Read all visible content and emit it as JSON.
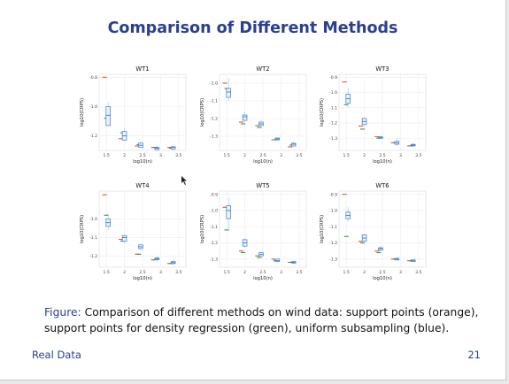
{
  "slide": {
    "title": "Comparison of Different Methods",
    "caption_label": "Figure:",
    "caption_text": "Comparison of different methods on wind data: support points (orange), support points for density regression (green), uniform subsampling (blue).",
    "footer_left": "Real Data",
    "page_number": "21"
  },
  "colors": {
    "orange": "#f0502e",
    "green": "#2e9e3a",
    "blue": "#3a7fd0",
    "title": "#2b3f8f"
  },
  "chart_data": [
    {
      "type": "box",
      "title": "WT1",
      "xlabel": "log10(n)",
      "ylabel": "log10(CRPS)",
      "xlim": [
        1.3,
        3.7
      ],
      "xticks": [
        1.5,
        2,
        2.5,
        3,
        3.5
      ],
      "xtick_labels": [
        "1.5",
        "2",
        "2.5",
        "3",
        "3.5"
      ],
      "ylim": [
        -1.3,
        -0.78
      ],
      "yticks": [
        -0.8,
        -1.0,
        -1.2
      ],
      "ytick_labels": [
        "-0.8",
        "-1.0",
        "-1.2"
      ],
      "series": [
        {
          "values": [
            [
              1.45,
              -0.8
            ],
            [
              1.9,
              -1.22
            ],
            [
              2.35,
              -1.27
            ],
            [
              2.8,
              -1.28
            ],
            [
              3.25,
              -1.28
            ]
          ]
        },
        {
          "values": [
            [
              1.5,
              -1.08
            ],
            [
              1.95,
              -1.18
            ],
            [
              2.4,
              -1.26
            ],
            [
              2.85,
              -1.28
            ],
            [
              3.3,
              -1.285
            ]
          ]
        },
        {
          "boxes": [
            [
              1.55,
              -1.11,
              -0.97,
              -1.0,
              -1.06,
              -1.13
            ],
            [
              2.0,
              -1.22,
              -1.15,
              -1.17,
              -1.2,
              -1.23
            ],
            [
              2.45,
              -1.28,
              -1.24,
              -1.25,
              -1.265,
              -1.28
            ],
            [
              2.9,
              -1.3,
              -1.27,
              -1.28,
              -1.285,
              -1.295
            ],
            [
              3.35,
              -1.3,
              -1.27,
              -1.275,
              -1.28,
              -1.29
            ]
          ]
        }
      ]
    },
    {
      "type": "box",
      "title": "WT2",
      "xlabel": "log10(n)",
      "ylabel": "log10(CRPS)",
      "xlim": [
        1.3,
        3.7
      ],
      "xticks": [
        1.5,
        2,
        2.5,
        3,
        3.5
      ],
      "xtick_labels": [
        "1.5",
        "2",
        "2.5",
        "3",
        "3.5"
      ],
      "ylim": [
        -1.38,
        -0.95
      ],
      "yticks": [
        -1.0,
        -1.1,
        -1.2,
        -1.3
      ],
      "ytick_labels": [
        "-1.0",
        "-1.1",
        "-1.2",
        "-1.3"
      ],
      "series": [
        {
          "values": [
            [
              1.45,
              -1.0
            ],
            [
              1.9,
              -1.22
            ],
            [
              2.35,
              -1.24
            ],
            [
              2.8,
              -1.32
            ],
            [
              3.25,
              -1.36
            ]
          ]
        },
        {
          "values": [
            [
              1.5,
              -1.03
            ],
            [
              1.95,
              -1.23
            ],
            [
              2.4,
              -1.25
            ],
            [
              2.85,
              -1.32
            ],
            [
              3.3,
              -1.35
            ]
          ]
        },
        {
          "boxes": [
            [
              1.55,
              -1.1,
              -0.97,
              -1.03,
              -1.05,
              -1.08
            ],
            [
              2.0,
              -1.22,
              -1.16,
              -1.18,
              -1.19,
              -1.21
            ],
            [
              2.45,
              -1.25,
              -1.21,
              -1.22,
              -1.23,
              -1.24
            ],
            [
              2.9,
              -1.32,
              -1.31,
              -1.31,
              -1.315,
              -1.32
            ],
            [
              3.35,
              -1.36,
              -1.33,
              -1.34,
              -1.345,
              -1.355
            ]
          ]
        }
      ]
    },
    {
      "type": "box",
      "title": "WT3",
      "xlabel": "log10(n)",
      "ylabel": "log10(CRPS)",
      "xlim": [
        1.3,
        3.7
      ],
      "xticks": [
        1.5,
        2,
        2.5,
        3,
        3.5
      ],
      "xtick_labels": [
        "1.5",
        "2",
        "2.5",
        "3",
        "3.5"
      ],
      "ylim": [
        -1.38,
        -0.88
      ],
      "yticks": [
        -0.9,
        -1.0,
        -1.1,
        -1.2,
        -1.3
      ],
      "ytick_labels": [
        "-0.9",
        "-1.0",
        "-1.1",
        "-1.2",
        "-1.3"
      ],
      "series": [
        {
          "values": [
            [
              1.45,
              -0.93
            ],
            [
              1.9,
              -1.22
            ],
            [
              2.35,
              -1.29
            ],
            [
              2.8,
              -1.33
            ],
            [
              3.25,
              -1.35
            ]
          ]
        },
        {
          "values": [
            [
              1.5,
              -1.08
            ],
            [
              1.95,
              -1.24
            ],
            [
              2.4,
              -1.3
            ],
            [
              2.85,
              -1.33
            ],
            [
              3.3,
              -1.35
            ]
          ]
        },
        {
          "boxes": [
            [
              1.55,
              -1.1,
              -0.97,
              -1.01,
              -1.04,
              -1.07
            ],
            [
              2.0,
              -1.22,
              -1.16,
              -1.17,
              -1.19,
              -1.21
            ],
            [
              2.45,
              -1.31,
              -1.28,
              -1.29,
              -1.295,
              -1.3
            ],
            [
              2.9,
              -1.35,
              -1.3,
              -1.32,
              -1.33,
              -1.34
            ],
            [
              3.35,
              -1.36,
              -1.33,
              -1.34,
              -1.345,
              -1.35
            ]
          ]
        }
      ]
    },
    {
      "type": "box",
      "title": "WT4",
      "xlabel": "log10(n)",
      "ylabel": "log10(CRPS)",
      "xlim": [
        1.3,
        3.7
      ],
      "xticks": [
        1.5,
        2,
        2.5,
        3,
        3.5
      ],
      "xtick_labels": [
        "1.5",
        "2",
        "2.5",
        "3",
        "3.5"
      ],
      "ylim": [
        -1.26,
        -0.85
      ],
      "yticks": [
        -1.0,
        -1.1,
        -1.2
      ],
      "ytick_labels": [
        "-1.0",
        "-1.1",
        "-1.2"
      ],
      "series": [
        {
          "values": [
            [
              1.45,
              -0.87
            ],
            [
              1.9,
              -1.11
            ],
            [
              2.35,
              -1.19
            ],
            [
              2.8,
              -1.22
            ],
            [
              3.25,
              -1.24
            ]
          ]
        },
        {
          "values": [
            [
              1.5,
              -0.98
            ],
            [
              1.95,
              -1.12
            ],
            [
              2.4,
              -1.19
            ],
            [
              2.85,
              -1.22
            ],
            [
              3.3,
              -1.24
            ]
          ]
        },
        {
          "boxes": [
            [
              1.55,
              -1.06,
              -0.97,
              -1.0,
              -1.02,
              -1.04
            ],
            [
              2.0,
              -1.13,
              -1.08,
              -1.09,
              -1.1,
              -1.12
            ],
            [
              2.45,
              -1.17,
              -1.13,
              -1.14,
              -1.15,
              -1.16
            ],
            [
              2.9,
              -1.23,
              -1.2,
              -1.21,
              -1.215,
              -1.22
            ],
            [
              3.35,
              -1.25,
              -1.22,
              -1.23,
              -1.235,
              -1.24
            ]
          ]
        }
      ]
    },
    {
      "type": "box",
      "title": "WT5",
      "xlabel": "log10(n)",
      "ylabel": "log10(CRPS)",
      "xlim": [
        1.3,
        3.7
      ],
      "xticks": [
        1.5,
        2,
        2.5,
        3,
        3.5
      ],
      "xtick_labels": [
        "1.5",
        "2",
        "2.5",
        "3",
        "3.5"
      ],
      "ylim": [
        -1.35,
        -0.88
      ],
      "yticks": [
        -0.9,
        -1.0,
        -1.1,
        -1.2,
        -1.3
      ],
      "ytick_labels": [
        "-0.9",
        "-1.0",
        "-1.1",
        "-1.2",
        "-1.3"
      ],
      "series": [
        {
          "values": [
            [
              1.45,
              -0.98
            ],
            [
              1.9,
              -1.25
            ],
            [
              2.35,
              -1.28
            ],
            [
              2.8,
              -1.3
            ],
            [
              3.25,
              -1.32
            ]
          ]
        },
        {
          "values": [
            [
              1.5,
              -1.12
            ],
            [
              1.95,
              -1.26
            ],
            [
              2.4,
              -1.29
            ],
            [
              2.85,
              -1.31
            ],
            [
              3.3,
              -1.32
            ]
          ]
        },
        {
          "boxes": [
            [
              1.55,
              -1.12,
              -0.92,
              -0.97,
              -1.0,
              -1.05
            ],
            [
              2.0,
              -1.23,
              -1.17,
              -1.18,
              -1.2,
              -1.22
            ],
            [
              2.45,
              -1.28,
              -1.25,
              -1.26,
              -1.27,
              -1.28
            ],
            [
              2.9,
              -1.32,
              -1.3,
              -1.3,
              -1.31,
              -1.315
            ],
            [
              3.35,
              -1.33,
              -1.31,
              -1.315,
              -1.32,
              -1.325
            ]
          ]
        }
      ]
    },
    {
      "type": "box",
      "title": "WT6",
      "xlabel": "log10(n)",
      "ylabel": "log10(CRPS)",
      "xlim": [
        1.3,
        3.7
      ],
      "xticks": [
        1.5,
        2,
        2.5,
        3,
        3.5
      ],
      "xtick_labels": [
        "1.5",
        "2",
        "2.5",
        "3",
        "3.5"
      ],
      "ylim": [
        -1.35,
        -0.88
      ],
      "yticks": [
        -0.9,
        -1.0,
        -1.1,
        -1.2,
        -1.3
      ],
      "ytick_labels": [
        "-0.9",
        "-1.0",
        "-1.1",
        "-1.2",
        "-1.3"
      ],
      "series": [
        {
          "values": [
            [
              1.45,
              -0.9
            ],
            [
              1.9,
              -1.19
            ],
            [
              2.35,
              -1.25
            ],
            [
              2.8,
              -1.3
            ],
            [
              3.25,
              -1.31
            ]
          ]
        },
        {
          "values": [
            [
              1.5,
              -1.16
            ],
            [
              1.95,
              -1.2
            ],
            [
              2.4,
              -1.26
            ],
            [
              2.85,
              -1.3
            ],
            [
              3.3,
              -1.31
            ]
          ]
        },
        {
          "boxes": [
            [
              1.55,
              -1.07,
              -0.98,
              -1.01,
              -1.03,
              -1.05
            ],
            [
              2.0,
              -1.2,
              -1.14,
              -1.15,
              -1.17,
              -1.19
            ],
            [
              2.45,
              -1.25,
              -1.22,
              -1.23,
              -1.235,
              -1.245
            ],
            [
              2.9,
              -1.31,
              -1.29,
              -1.295,
              -1.3,
              -1.305
            ],
            [
              3.35,
              -1.32,
              -1.3,
              -1.305,
              -1.31,
              -1.315
            ]
          ]
        }
      ]
    }
  ]
}
